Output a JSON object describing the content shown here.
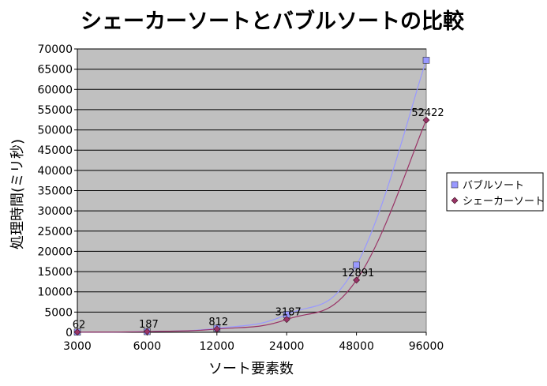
{
  "chart_data": {
    "type": "line",
    "title": "シェーカーソートとバブルソートの比較",
    "xlabel": "ソート要素数",
    "ylabel": "処理時間(ミリ秒)",
    "categories": [
      "3000",
      "6000",
      "12000",
      "24000",
      "48000",
      "96000"
    ],
    "ylim": [
      0,
      70000
    ],
    "yticks": [
      "0",
      "5000",
      "10000",
      "15000",
      "20000",
      "25000",
      "30000",
      "35000",
      "40000",
      "45000",
      "50000",
      "55000",
      "60000",
      "65000",
      "70000"
    ],
    "grid": true,
    "legend_position": "right",
    "series": [
      {
        "name": "バブルソート",
        "values": [
          62,
          187,
          1000,
          4400,
          16600,
          67200
        ],
        "marker": "square",
        "marker_color": "#9999ff",
        "line_color": "#9999ff",
        "data_labels": []
      },
      {
        "name": "シェーカーソート",
        "values": [
          62,
          187,
          812,
          3187,
          12891,
          52422
        ],
        "marker": "diamond",
        "marker_color": "#993366",
        "line_color": "#993366",
        "data_labels": [
          "62",
          "187",
          "812",
          "3187",
          "12891",
          "52422"
        ]
      }
    ],
    "plot_background": "#c0c0c0"
  }
}
